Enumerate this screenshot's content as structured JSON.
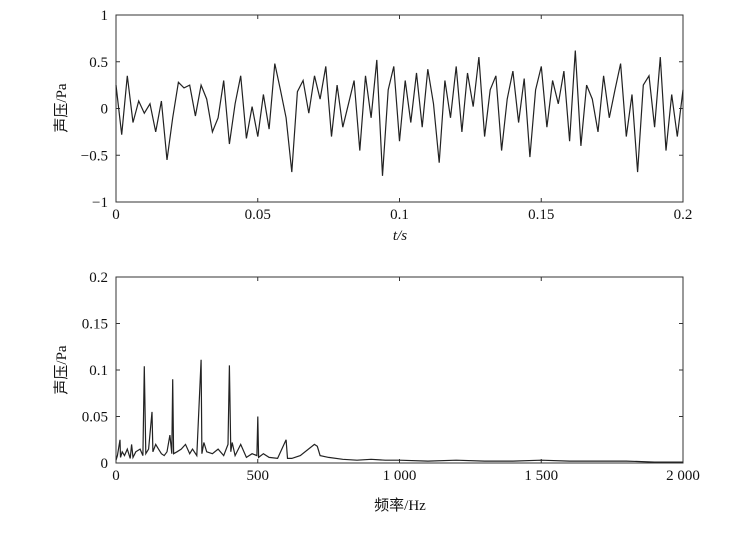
{
  "chart_data": [
    {
      "type": "line",
      "xlabel": "t/s",
      "ylabel": "声压/Pa",
      "xlim": [
        0,
        0.2
      ],
      "ylim": [
        -1,
        1
      ],
      "xticks": [
        "0",
        "0.05",
        "0.1",
        "0.15",
        "0.2"
      ],
      "yticks": [
        "1",
        "0.5",
        "0",
        "−0.5",
        "−1"
      ],
      "grid": false,
      "x_step": 0.002,
      "values": [
        0.25,
        -0.28,
        0.35,
        -0.15,
        0.08,
        -0.05,
        0.05,
        -0.25,
        0.08,
        -0.55,
        -0.1,
        0.28,
        0.22,
        0.25,
        -0.08,
        0.25,
        0.1,
        -0.25,
        -0.1,
        0.3,
        -0.38,
        0.05,
        0.35,
        -0.32,
        0.02,
        -0.3,
        0.15,
        -0.22,
        0.48,
        0.2,
        -0.1,
        -0.68,
        0.18,
        0.3,
        -0.05,
        0.35,
        0.1,
        0.45,
        -0.3,
        0.25,
        -0.2,
        0.05,
        0.3,
        -0.45,
        0.35,
        -0.1,
        0.52,
        -0.72,
        0.2,
        0.45,
        -0.35,
        0.3,
        -0.15,
        0.38,
        -0.2,
        0.42,
        0.05,
        -0.58,
        0.3,
        -0.1,
        0.45,
        -0.25,
        0.38,
        0.02,
        0.55,
        -0.3,
        0.2,
        0.35,
        -0.45,
        0.1,
        0.4,
        -0.15,
        0.32,
        -0.52,
        0.2,
        0.45,
        -0.2,
        0.3,
        0.05,
        0.4,
        -0.35,
        0.62,
        -0.4,
        0.25,
        0.1,
        -0.25,
        0.35,
        -0.1,
        0.2,
        0.48,
        -0.3,
        0.15,
        -0.68,
        0.25,
        0.35,
        -0.2,
        0.55,
        -0.45,
        0.15,
        -0.3,
        0.2
      ],
      "line_color": "#222222"
    },
    {
      "type": "line",
      "xlabel": "频率/Hz",
      "ylabel": "声压/Pa",
      "xlim": [
        0,
        2000
      ],
      "ylim": [
        0,
        0.2
      ],
      "xticks": [
        "0",
        "500",
        "1 000",
        "1 500",
        "2 000"
      ],
      "yticks": [
        "0.2",
        "0.15",
        "0.1",
        "0.05",
        "0"
      ],
      "grid": false,
      "x": [
        0,
        5,
        14,
        16,
        22,
        30,
        40,
        50,
        55,
        60,
        70,
        85,
        95,
        100,
        105,
        115,
        127,
        130,
        140,
        150,
        160,
        170,
        180,
        190,
        197,
        200,
        203,
        215,
        230,
        245,
        260,
        270,
        285,
        300,
        303,
        310,
        320,
        340,
        360,
        380,
        395,
        400,
        405,
        410,
        420,
        440,
        460,
        480,
        497,
        500,
        503,
        520,
        540,
        570,
        600,
        605,
        620,
        650,
        700,
        710,
        720,
        750,
        800,
        850,
        900,
        950,
        1000,
        1100,
        1200,
        1300,
        1400,
        1500,
        1600,
        1700,
        1800,
        1900,
        2000
      ],
      "values": [
        0.003,
        0.008,
        0.025,
        0.006,
        0.012,
        0.008,
        0.015,
        0.005,
        0.02,
        0.006,
        0.012,
        0.015,
        0.008,
        0.104,
        0.01,
        0.015,
        0.055,
        0.012,
        0.02,
        0.015,
        0.01,
        0.008,
        0.012,
        0.03,
        0.01,
        0.09,
        0.01,
        0.012,
        0.015,
        0.02,
        0.01,
        0.015,
        0.008,
        0.111,
        0.01,
        0.022,
        0.012,
        0.01,
        0.015,
        0.008,
        0.02,
        0.105,
        0.012,
        0.022,
        0.008,
        0.02,
        0.006,
        0.01,
        0.008,
        0.05,
        0.006,
        0.01,
        0.006,
        0.005,
        0.025,
        0.005,
        0.005,
        0.008,
        0.02,
        0.018,
        0.008,
        0.006,
        0.004,
        0.003,
        0.004,
        0.003,
        0.003,
        0.002,
        0.003,
        0.002,
        0.002,
        0.003,
        0.002,
        0.002,
        0.002,
        0.001,
        0.001
      ],
      "line_color": "#222222"
    }
  ]
}
